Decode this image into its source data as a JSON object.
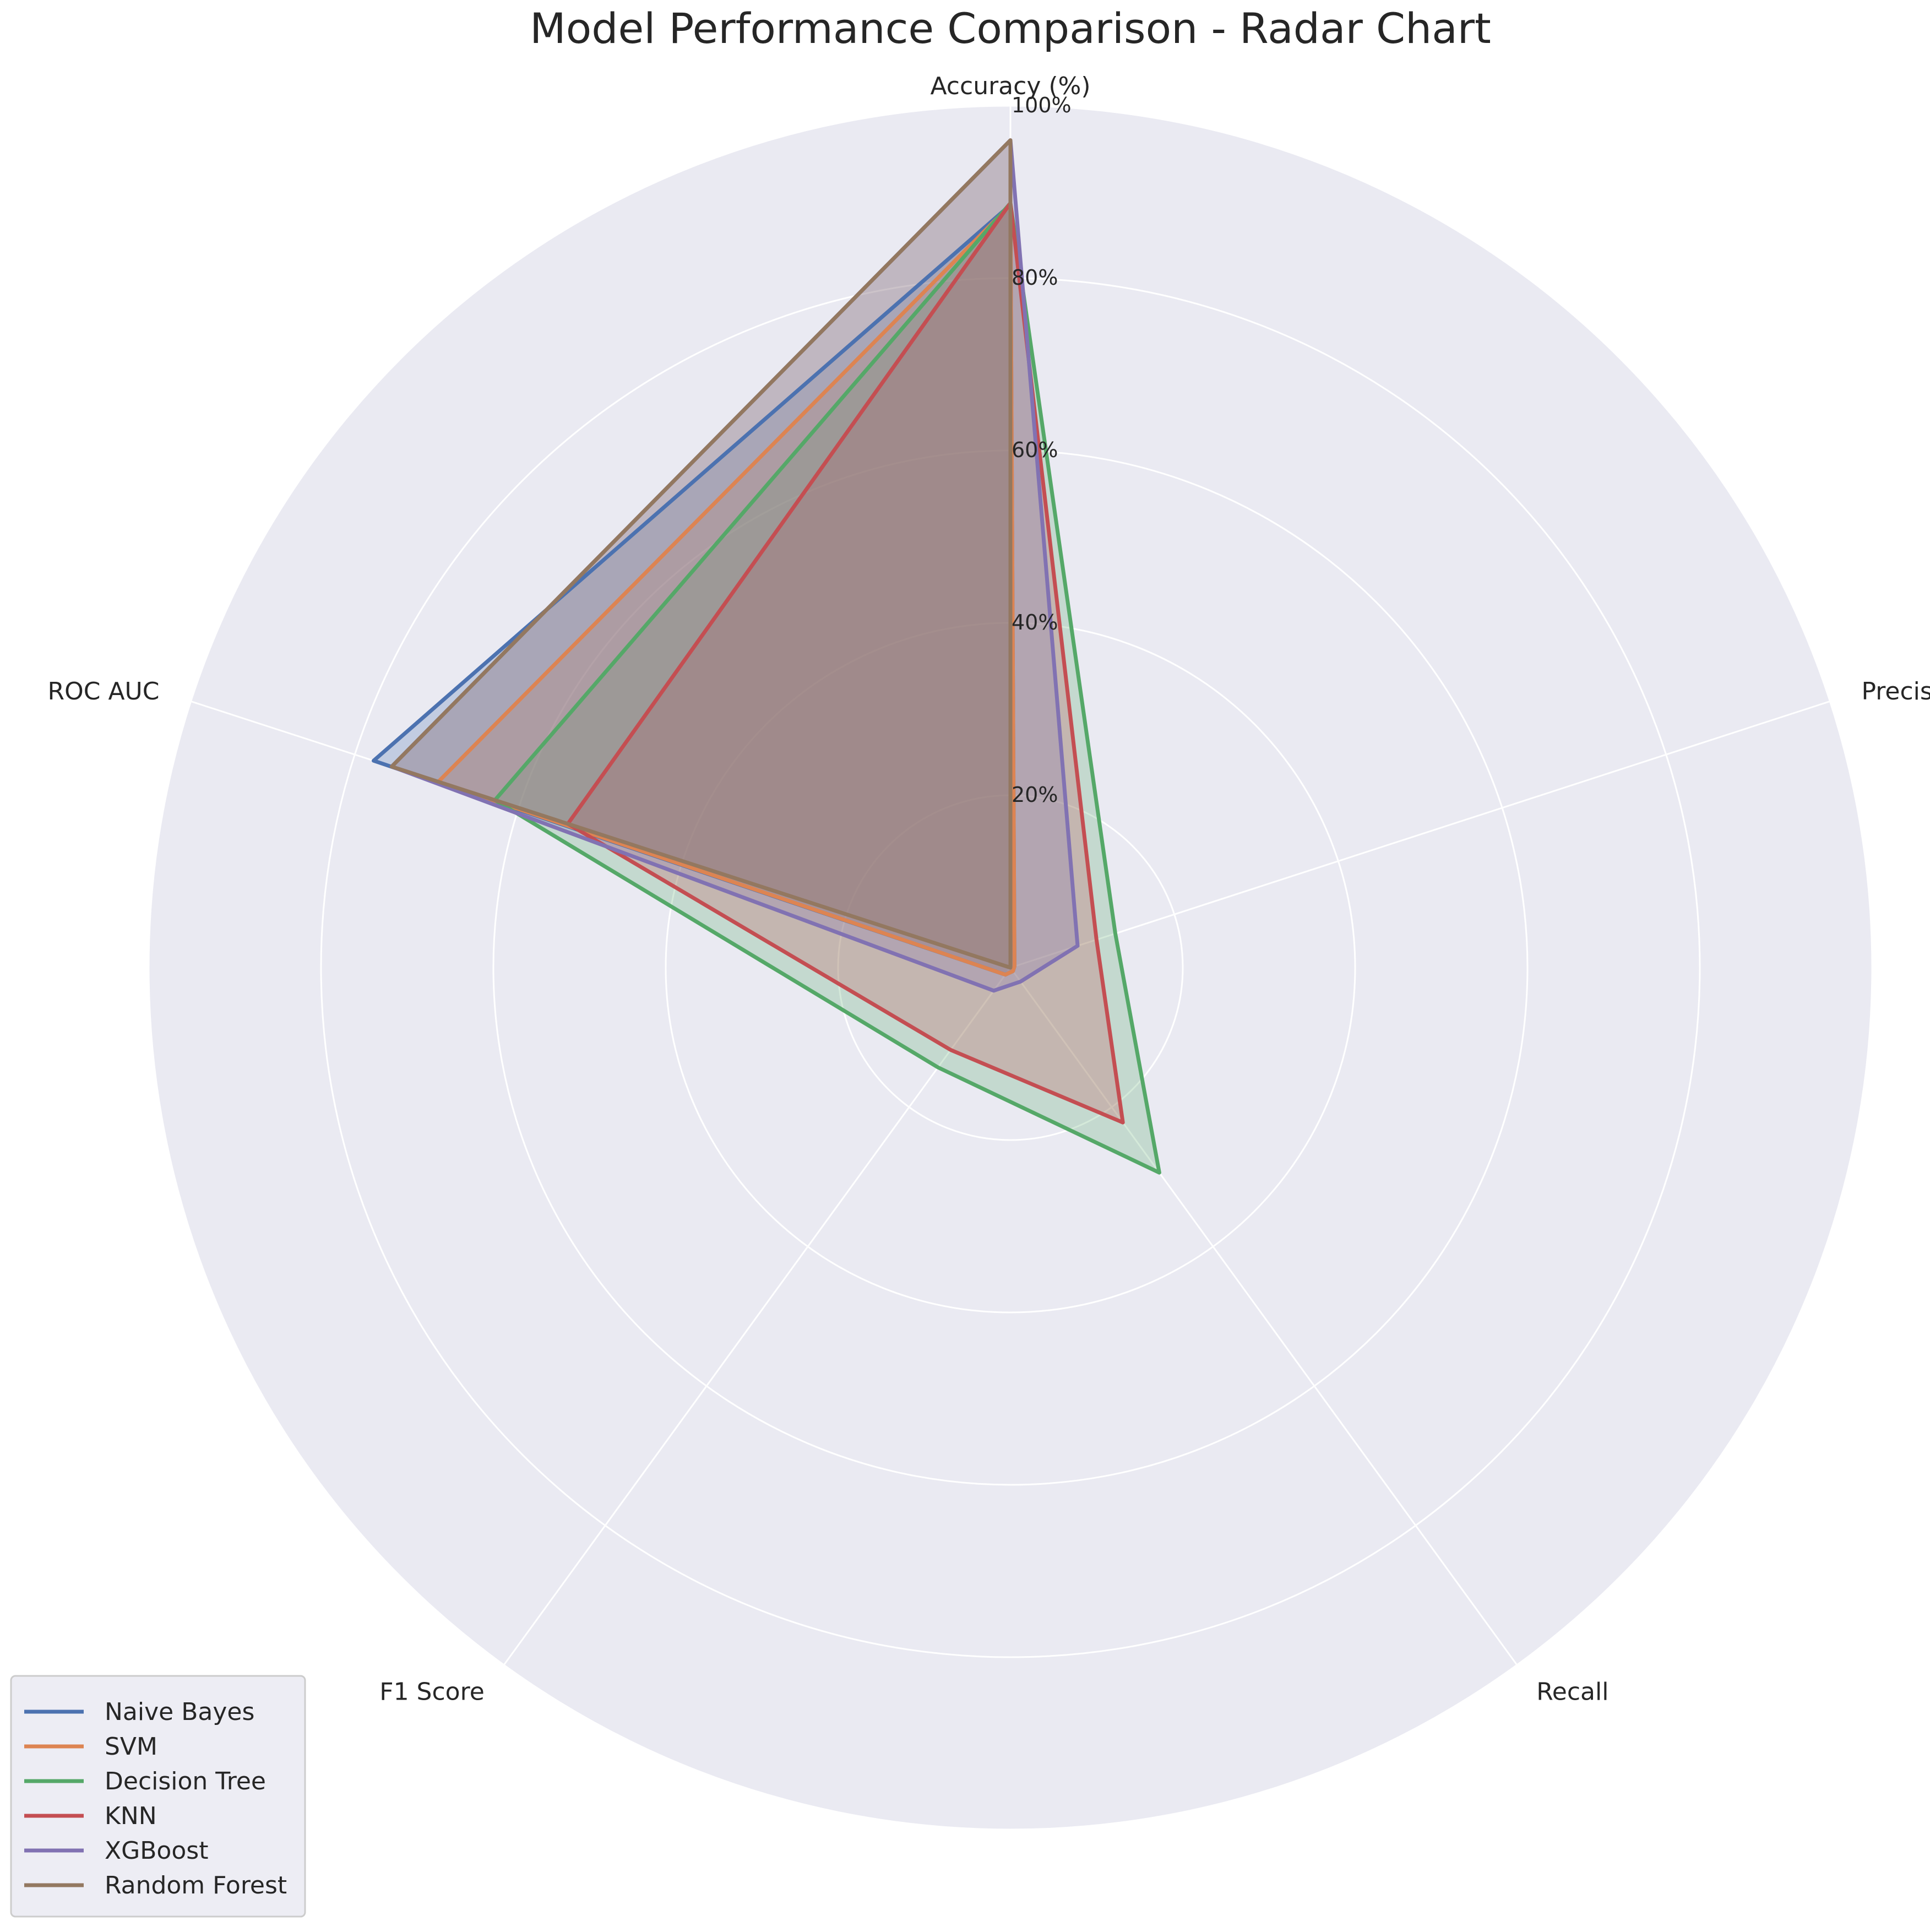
{
  "chart_data": {
    "type": "radar",
    "title": "Model Performance Comparison - Radar Chart",
    "axes": [
      "Accuracy (%)",
      "Precision",
      "Recall",
      "F1 Score",
      "ROC AUC"
    ],
    "radial_ticks": [
      {
        "value": 20,
        "label": "20%"
      },
      {
        "value": 40,
        "label": "40%"
      },
      {
        "value": 60,
        "label": "60%"
      },
      {
        "value": 80,
        "label": "80%"
      },
      {
        "value": 100,
        "label": "100%"
      }
    ],
    "rlim": [
      0,
      100
    ],
    "grid": true,
    "legend_position": "lower-left",
    "series": [
      {
        "name": "Naive Bayes",
        "color": "#4c72b0",
        "values": [
          88.5,
          0.5,
          0.5,
          1.0,
          77.7
        ]
      },
      {
        "name": "SVM",
        "color": "#dd8452",
        "values": [
          88.5,
          0.5,
          0.5,
          1.0,
          69.8
        ]
      },
      {
        "name": "Decision Tree",
        "color": "#55a868",
        "values": [
          88.7,
          12.8,
          29.4,
          14.3,
          62.9
        ]
      },
      {
        "name": "KNN",
        "color": "#c44e52",
        "values": [
          88.7,
          10.5,
          22.2,
          11.8,
          54.0
        ]
      },
      {
        "name": "XGBoost",
        "color": "#8172b2",
        "values": [
          96.0,
          8.2,
          2.0,
          3.3,
          75.5
        ]
      },
      {
        "name": "Random Forest",
        "color": "#937860",
        "values": [
          96.0,
          0.0,
          0.0,
          0.0,
          75.5
        ]
      }
    ]
  },
  "colors": {
    "plot_background": "#eaeaf2",
    "grid": "#ffffff",
    "page_background": "#ffffff"
  }
}
